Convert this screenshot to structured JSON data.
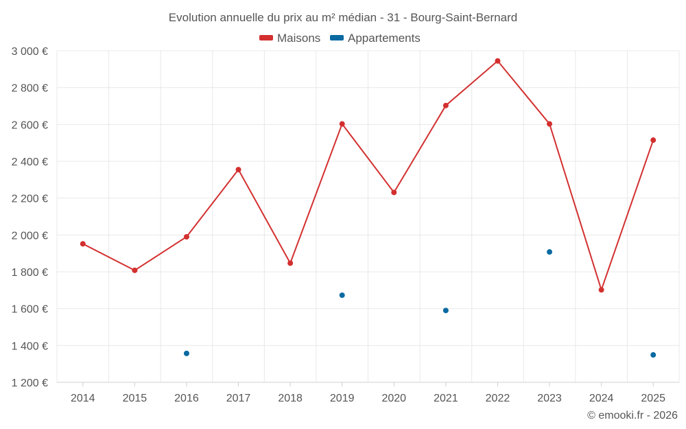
{
  "chart_data": {
    "type": "line",
    "title": "Evolution annuelle du prix au m² médian - 31 - Bourg-Saint-Bernard",
    "xlabel": "",
    "ylabel": "",
    "categories": [
      "2014",
      "2015",
      "2016",
      "2017",
      "2018",
      "2019",
      "2020",
      "2021",
      "2022",
      "2023",
      "2024",
      "2025"
    ],
    "ylim": [
      1200,
      3000
    ],
    "yticks": [
      1200,
      1400,
      1600,
      1800,
      2000,
      2200,
      2400,
      2600,
      2800,
      3000
    ],
    "ytick_labels": [
      "1 200 €",
      "1 400 €",
      "1 600 €",
      "1 800 €",
      "2 000 €",
      "2 200 €",
      "2 400 €",
      "2 600 €",
      "2 800 €",
      "3 000 €"
    ],
    "grid": true,
    "legend_position": "top-center",
    "series": [
      {
        "name": "Maisons",
        "color": "#d32f2f",
        "style": "line",
        "values": [
          1952,
          1808,
          1990,
          2355,
          1847,
          2603,
          2231,
          2703,
          2945,
          2603,
          1702,
          2515
        ]
      },
      {
        "name": "Appartements",
        "color": "#0a6aa1",
        "style": "scatter",
        "values": [
          null,
          null,
          1357,
          null,
          null,
          1673,
          null,
          1590,
          null,
          1908,
          null,
          1349
        ]
      }
    ]
  },
  "footer": {
    "credit": "© emooki.fr - 2026"
  }
}
